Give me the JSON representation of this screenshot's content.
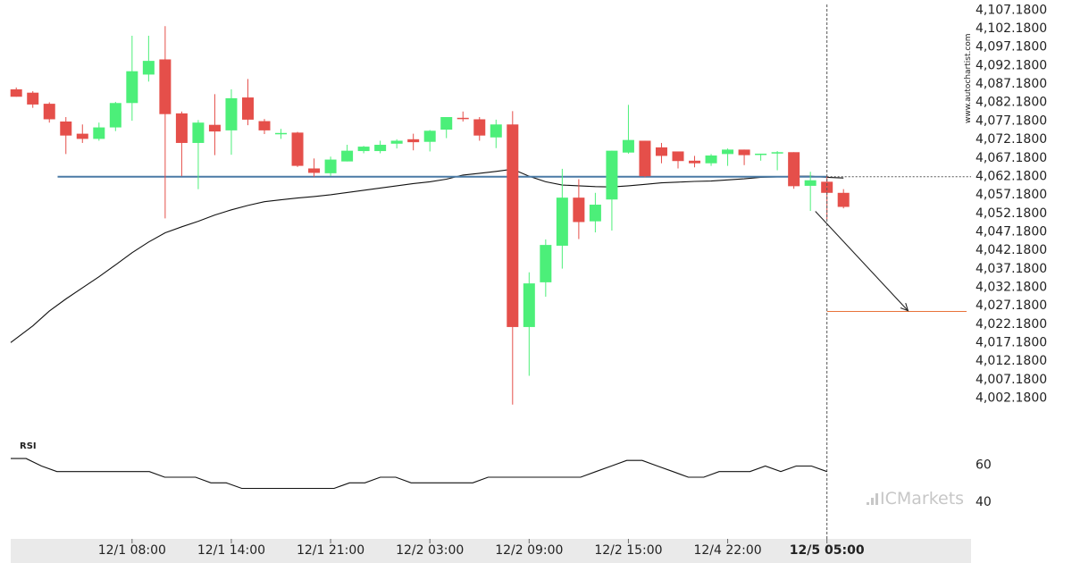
{
  "chart_data": {
    "type": "candlestick",
    "y_ticks": [
      "4,107.1800",
      "4,102.1800",
      "4,097.1800",
      "4,092.1800",
      "4,087.1800",
      "4,082.1800",
      "4,077.1800",
      "4,072.1800",
      "4,067.1800",
      "4,062.1800",
      "4,057.1800",
      "4,052.1800",
      "4,047.1800",
      "4,042.1800",
      "4,037.1800",
      "4,032.1800",
      "4,027.1800",
      "4,022.1800",
      "4,017.1800",
      "4,012.1800",
      "4,007.1800",
      "4,002.1800"
    ],
    "ylim": [
      3997.2,
      4108.1
    ],
    "x_ticks": [
      {
        "label": "12/1 08:00",
        "index": 7
      },
      {
        "label": "12/1 14:00",
        "index": 13
      },
      {
        "label": "12/1 21:00",
        "index": 19
      },
      {
        "label": "12/2 03:00",
        "index": 25
      },
      {
        "label": "12/2 09:00",
        "index": 31
      },
      {
        "label": "12/2 15:00",
        "index": 37
      },
      {
        "label": "12/4 22:00",
        "index": 43
      },
      {
        "label": "12/5 05:00",
        "index": 49,
        "bold": true
      }
    ],
    "candles": [
      {
        "o": 4085.5,
        "h": 4086.0,
        "l": 4083.5,
        "c": 4083.5
      },
      {
        "o": 4084.6,
        "h": 4085.0,
        "l": 4080.5,
        "c": 4081.4
      },
      {
        "o": 4081.6,
        "h": 4082.0,
        "l": 4076.5,
        "c": 4077.4
      },
      {
        "o": 4076.8,
        "h": 4078.0,
        "l": 4068.0,
        "c": 4073.0
      },
      {
        "o": 4073.5,
        "h": 4076.0,
        "l": 4071.0,
        "c": 4072.1
      },
      {
        "o": 4072.1,
        "h": 4076.5,
        "l": 4071.6,
        "c": 4075.2
      },
      {
        "o": 4075.2,
        "h": 4082.1,
        "l": 4074.2,
        "c": 4081.8
      },
      {
        "o": 4081.8,
        "h": 4100.0,
        "l": 4077.0,
        "c": 4090.4
      },
      {
        "o": 4089.5,
        "h": 4100.0,
        "l": 4087.6,
        "c": 4093.2
      },
      {
        "o": 4093.6,
        "h": 4102.6,
        "l": 4050.6,
        "c": 4078.8
      },
      {
        "o": 4079.0,
        "h": 4079.5,
        "l": 4062.0,
        "c": 4071.0
      },
      {
        "o": 4071.0,
        "h": 4077.2,
        "l": 4058.5,
        "c": 4076.5
      },
      {
        "o": 4075.9,
        "h": 4084.2,
        "l": 4067.7,
        "c": 4074.1
      },
      {
        "o": 4074.4,
        "h": 4085.5,
        "l": 4067.8,
        "c": 4083.1
      },
      {
        "o": 4083.3,
        "h": 4088.3,
        "l": 4075.8,
        "c": 4077.3
      },
      {
        "o": 4076.9,
        "h": 4077.5,
        "l": 4073.4,
        "c": 4074.4
      },
      {
        "o": 4073.7,
        "h": 4074.8,
        "l": 4072.1,
        "c": 4073.7
      },
      {
        "o": 4073.8,
        "h": 4074.0,
        "l": 4064.5,
        "c": 4064.8
      },
      {
        "o": 4064.1,
        "h": 4066.8,
        "l": 4061.8,
        "c": 4062.9
      },
      {
        "o": 4062.8,
        "h": 4067.3,
        "l": 4062.1,
        "c": 4066.5
      },
      {
        "o": 4066.0,
        "h": 4070.5,
        "l": 4066.0,
        "c": 4068.9
      },
      {
        "o": 4068.8,
        "h": 4070.2,
        "l": 4068.2,
        "c": 4070.0
      },
      {
        "o": 4068.8,
        "h": 4071.6,
        "l": 4068.2,
        "c": 4070.5
      },
      {
        "o": 4070.8,
        "h": 4072.0,
        "l": 4069.5,
        "c": 4071.6
      },
      {
        "o": 4072.0,
        "h": 4073.5,
        "l": 4069.0,
        "c": 4071.2
      },
      {
        "o": 4071.3,
        "h": 4074.5,
        "l": 4068.7,
        "c": 4074.3
      },
      {
        "o": 4074.6,
        "h": 4078.0,
        "l": 4072.3,
        "c": 4078.0
      },
      {
        "o": 4077.8,
        "h": 4079.5,
        "l": 4076.8,
        "c": 4077.6
      },
      {
        "o": 4077.4,
        "h": 4078.0,
        "l": 4071.6,
        "c": 4073.0
      },
      {
        "o": 4072.5,
        "h": 4077.3,
        "l": 4069.6,
        "c": 4076.0
      },
      {
        "o": 4076.0,
        "h": 4079.6,
        "l": 4000.2,
        "c": 4021.2
      },
      {
        "o": 4021.2,
        "h": 4036.0,
        "l": 4008.0,
        "c": 4033.0
      },
      {
        "o": 4033.3,
        "h": 4044.9,
        "l": 4029.4,
        "c": 4043.4
      },
      {
        "o": 4043.2,
        "h": 4064.0,
        "l": 4037.0,
        "c": 4056.2
      },
      {
        "o": 4056.2,
        "h": 4061.2,
        "l": 4045.0,
        "c": 4049.6
      },
      {
        "o": 4049.8,
        "h": 4057.5,
        "l": 4046.8,
        "c": 4054.3
      },
      {
        "o": 4055.7,
        "h": 4068.9,
        "l": 4047.3,
        "c": 4068.9
      },
      {
        "o": 4068.4,
        "h": 4081.3,
        "l": 4068.1,
        "c": 4071.8
      },
      {
        "o": 4071.6,
        "h": 4071.6,
        "l": 4061.7,
        "c": 4062.0
      },
      {
        "o": 4069.8,
        "h": 4071.0,
        "l": 4065.5,
        "c": 4067.5
      },
      {
        "o": 4068.7,
        "h": 4068.7,
        "l": 4064.1,
        "c": 4066.1
      },
      {
        "o": 4066.2,
        "h": 4067.5,
        "l": 4064.4,
        "c": 4065.5
      },
      {
        "o": 4065.5,
        "h": 4068.0,
        "l": 4064.8,
        "c": 4067.6
      },
      {
        "o": 4068.0,
        "h": 4069.5,
        "l": 4064.8,
        "c": 4069.2
      },
      {
        "o": 4069.2,
        "h": 4069.2,
        "l": 4065.0,
        "c": 4067.7
      },
      {
        "o": 4068.0,
        "h": 4068.1,
        "l": 4066.2,
        "c": 4068.1
      },
      {
        "o": 4068.5,
        "h": 4068.8,
        "l": 4063.6,
        "c": 4068.5
      },
      {
        "o": 4068.5,
        "h": 4068.5,
        "l": 4058.6,
        "c": 4059.3
      },
      {
        "o": 4059.4,
        "h": 4063.2,
        "l": 4052.6,
        "c": 4060.9
      },
      {
        "o": 4060.5,
        "h": 4062.2,
        "l": 4050.4,
        "c": 4057.5
      },
      {
        "o": 4057.5,
        "h": 4058.5,
        "l": 4053.3,
        "c": 4053.7
      }
    ],
    "ma_line": [
      4017.0,
      4021.5,
      4025.5,
      4028.8,
      4031.8,
      4034.8,
      4038.0,
      4041.3,
      4044.2,
      4046.7,
      4048.3,
      4049.8,
      4051.5,
      4052.9,
      4054.1,
      4055.1,
      4055.6,
      4056.1,
      4056.5,
      4057.0,
      4057.6,
      4058.2,
      4058.8,
      4059.4,
      4060.0,
      4060.5,
      4061.2,
      4062.3,
      4062.8,
      4063.3,
      4063.9,
      4062.0,
      4060.5,
      4059.6,
      4059.4,
      4059.2,
      4059.1,
      4059.4,
      4059.8,
      4060.2,
      4060.4,
      4060.6,
      4060.7,
      4061.0,
      4061.3,
      4061.7,
      4061.8,
      4062.0,
      4062.0,
      4061.7,
      4061.5
    ],
    "resistance_level": 4061.85,
    "resistance_start_index": 2.5,
    "current_price": 4061.85,
    "target_level": 4025.4,
    "arrow": {
      "from_index": 48.3,
      "from_value": 4052.5,
      "to_index": 53.9,
      "to_value": 4025.6
    },
    "dashed_index": 49,
    "rsi": {
      "label": "RSI",
      "ticks": [
        "60",
        "40"
      ],
      "ylim": [
        20,
        75
      ],
      "values": [
        63,
        63,
        59,
        56,
        56,
        56,
        56,
        56,
        56,
        56,
        53,
        53,
        53,
        50,
        50,
        47,
        47,
        47,
        47,
        47,
        47,
        47,
        50,
        50,
        53,
        53,
        50,
        50,
        50,
        50,
        50,
        53,
        53,
        53,
        53,
        53,
        53,
        53,
        56,
        59,
        62,
        62,
        59,
        56,
        53,
        53,
        56,
        56,
        56,
        59,
        56,
        59,
        59,
        56
      ]
    }
  },
  "watermark": "www.autochartist.com",
  "brand": {
    "logo_text": "ICMarkets",
    "icon": "ic-logo-icon"
  }
}
